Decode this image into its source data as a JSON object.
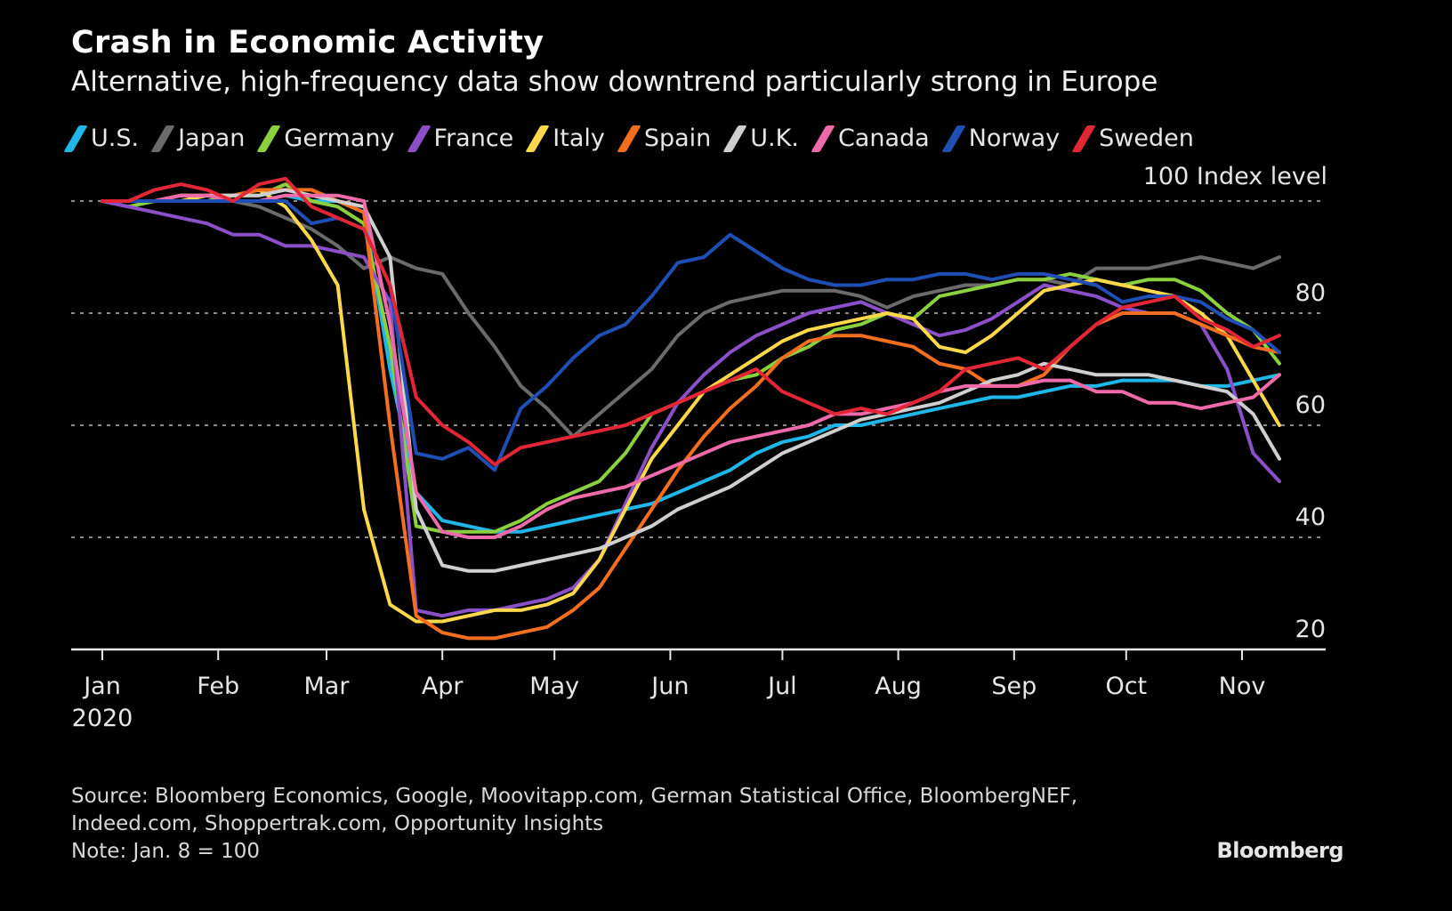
{
  "chart_data": {
    "type": "line",
    "title": "Crash in Economic Activity",
    "subtitle": "Alternative, high-frequency data show downtrend particularly strong in Europe",
    "ylabel": "Index level",
    "ylabel_prefix": "100",
    "xlabel": "",
    "ylim": [
      20,
      100
    ],
    "yticks": [
      20,
      40,
      60,
      80,
      100
    ],
    "ytick_labels": [
      "20",
      "40",
      "60",
      "80",
      "100"
    ],
    "grid": true,
    "legend_position": "top",
    "x_unit": "days since Jan 1, 2020",
    "xlim": [
      0,
      335
    ],
    "xticks": [
      {
        "day": 0,
        "label": "Jan"
      },
      {
        "day": 31,
        "label": "Feb"
      },
      {
        "day": 60,
        "label": "Mar"
      },
      {
        "day": 91,
        "label": "Apr"
      },
      {
        "day": 121,
        "label": "May"
      },
      {
        "day": 152,
        "label": "Jun"
      },
      {
        "day": 182,
        "label": "Jul"
      },
      {
        "day": 213,
        "label": "Aug"
      },
      {
        "day": 244,
        "label": "Sep"
      },
      {
        "day": 274,
        "label": "Oct"
      },
      {
        "day": 305,
        "label": "Nov"
      }
    ],
    "year_label": "2020",
    "x": [
      0,
      7,
      14,
      21,
      28,
      35,
      42,
      49,
      56,
      63,
      70,
      77,
      84,
      91,
      98,
      105,
      112,
      119,
      126,
      133,
      140,
      147,
      154,
      161,
      168,
      175,
      182,
      189,
      196,
      203,
      210,
      217,
      224,
      231,
      238,
      245,
      252,
      259,
      266,
      273,
      280,
      287,
      294,
      301,
      308,
      315
    ],
    "series": [
      {
        "name": "U.S.",
        "color": "#1fb6e8",
        "values": [
          100,
          100,
          100,
          100,
          100,
          100,
          100,
          101,
          100,
          100,
          98,
          70,
          48,
          43,
          42,
          41,
          41,
          42,
          43,
          44,
          45,
          46,
          48,
          50,
          52,
          55,
          57,
          58,
          60,
          60,
          61,
          62,
          63,
          64,
          65,
          65,
          66,
          67,
          67,
          68,
          68,
          68,
          67,
          67,
          68,
          69
        ]
      },
      {
        "name": "Japan",
        "color": "#6b6b6b",
        "values": [
          100,
          100,
          100,
          100,
          101,
          100,
          99,
          97,
          95,
          92,
          88,
          90,
          88,
          87,
          80,
          74,
          67,
          63,
          58,
          62,
          66,
          70,
          76,
          80,
          82,
          83,
          84,
          84,
          84,
          83,
          81,
          83,
          84,
          85,
          85,
          86,
          86,
          85,
          88,
          88,
          88,
          89,
          90,
          89,
          88,
          90
        ]
      },
      {
        "name": "Germany",
        "color": "#8ad03f",
        "values": [
          100,
          99,
          100,
          100,
          100,
          101,
          101,
          103,
          100,
          99,
          96,
          74,
          42,
          41,
          41,
          41,
          43,
          46,
          48,
          50,
          55,
          62,
          64,
          66,
          68,
          69,
          72,
          74,
          77,
          78,
          80,
          79,
          83,
          84,
          85,
          86,
          86,
          87,
          86,
          85,
          86,
          86,
          84,
          80,
          77,
          71
        ]
      },
      {
        "name": "France",
        "color": "#8b50c8",
        "values": [
          100,
          99,
          98,
          97,
          96,
          94,
          94,
          92,
          92,
          91,
          90,
          82,
          27,
          26,
          27,
          27,
          28,
          29,
          31,
          36,
          46,
          56,
          64,
          69,
          73,
          76,
          78,
          80,
          81,
          82,
          80,
          78,
          76,
          77,
          79,
          82,
          85,
          84,
          83,
          81,
          80,
          80,
          78,
          70,
          55,
          50
        ]
      },
      {
        "name": "Italy",
        "color": "#fdd84a",
        "values": [
          100,
          100,
          100,
          100,
          101,
          101,
          102,
          99,
          93,
          85,
          45,
          28,
          25,
          25,
          26,
          27,
          27,
          28,
          30,
          36,
          45,
          54,
          60,
          66,
          69,
          72,
          75,
          77,
          78,
          79,
          80,
          79,
          74,
          73,
          76,
          80,
          84,
          85,
          86,
          85,
          84,
          83,
          80,
          76,
          68,
          60
        ]
      },
      {
        "name": "Spain",
        "color": "#f36f1f",
        "values": [
          100,
          100,
          100,
          101,
          101,
          101,
          102,
          102,
          102,
          100,
          98,
          60,
          26,
          23,
          22,
          22,
          23,
          24,
          27,
          31,
          38,
          45,
          52,
          58,
          63,
          67,
          72,
          75,
          76,
          76,
          75,
          74,
          71,
          70,
          67,
          67,
          69,
          74,
          78,
          80,
          80,
          80,
          78,
          76,
          74,
          73
        ]
      },
      {
        "name": "U.K.",
        "color": "#cfcfcf",
        "values": [
          100,
          100,
          100,
          101,
          101,
          101,
          101,
          102,
          101,
          100,
          99,
          90,
          45,
          35,
          34,
          34,
          35,
          36,
          37,
          38,
          40,
          42,
          45,
          47,
          49,
          52,
          55,
          57,
          59,
          61,
          62,
          63,
          64,
          66,
          68,
          69,
          71,
          70,
          69,
          69,
          69,
          68,
          67,
          66,
          62,
          54
        ]
      },
      {
        "name": "Canada",
        "color": "#ef6aa8",
        "values": [
          100,
          100,
          100,
          101,
          101,
          100,
          100,
          101,
          101,
          101,
          100,
          78,
          48,
          41,
          40,
          40,
          42,
          45,
          47,
          48,
          49,
          51,
          53,
          55,
          57,
          58,
          59,
          60,
          62,
          62,
          63,
          64,
          66,
          67,
          67,
          67,
          68,
          68,
          66,
          66,
          64,
          64,
          63,
          64,
          65,
          69
        ]
      },
      {
        "name": "Norway",
        "color": "#1f4fb4",
        "values": [
          100,
          100,
          100,
          100,
          100,
          100,
          100,
          100,
          96,
          97,
          95,
          85,
          55,
          54,
          56,
          52,
          63,
          67,
          72,
          76,
          78,
          83,
          89,
          90,
          94,
          91,
          88,
          86,
          85,
          85,
          86,
          86,
          87,
          87,
          86,
          87,
          87,
          86,
          85,
          82,
          83,
          83,
          82,
          79,
          77,
          73
        ]
      },
      {
        "name": "Sweden",
        "color": "#e32636",
        "values": [
          100,
          100,
          102,
          103,
          102,
          100,
          103,
          104,
          99,
          97,
          95,
          85,
          65,
          60,
          57,
          53,
          56,
          57,
          58,
          59,
          60,
          62,
          64,
          66,
          68,
          70,
          66,
          64,
          62,
          63,
          62,
          64,
          66,
          70,
          71,
          72,
          70,
          74,
          78,
          81,
          82,
          83,
          79,
          77,
          74,
          76
        ]
      }
    ],
    "source": "Source: Bloomberg Economics, Google, Moovitapp.com, German Statistical Office, BloombergNEF,",
    "source_line2": "Indeed.com, Shoppertrak.com, Opportunity Insights",
    "note": "Note: Jan. 8 = 100",
    "brand": "Bloomberg"
  }
}
